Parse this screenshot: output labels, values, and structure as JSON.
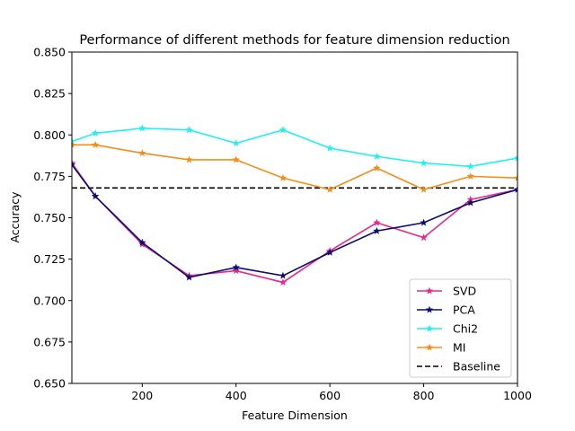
{
  "chart_data": {
    "type": "line",
    "title": "Performance of different methods for feature dimension reduction",
    "xlabel": "Feature Dimension",
    "ylabel": "Accuracy",
    "xlim": [
      50,
      1000
    ],
    "ylim": [
      0.65,
      0.85
    ],
    "xticks": [
      200,
      400,
      600,
      800,
      1000
    ],
    "xtick_labels": [
      "200",
      "400",
      "600",
      "800",
      "1000"
    ],
    "yticks": [
      0.65,
      0.675,
      0.7,
      0.725,
      0.75,
      0.775,
      0.8,
      0.825,
      0.85
    ],
    "ytick_labels": [
      "0.650",
      "0.675",
      "0.700",
      "0.725",
      "0.750",
      "0.775",
      "0.800",
      "0.825",
      "0.850"
    ],
    "grid": false,
    "legend_position": "lower-right",
    "x": [
      50,
      100,
      200,
      300,
      400,
      500,
      600,
      700,
      800,
      900,
      1000
    ],
    "series": [
      {
        "name": "SVD",
        "color": "#e7298a",
        "marker": "star",
        "values": [
          0.783,
          0.763,
          0.734,
          0.715,
          0.718,
          0.711,
          0.73,
          0.747,
          0.738,
          0.761,
          0.767
        ]
      },
      {
        "name": "PCA",
        "color": "#0b0b73",
        "marker": "star",
        "values": [
          0.782,
          0.763,
          0.735,
          0.714,
          0.72,
          0.715,
          0.729,
          0.742,
          0.747,
          0.759,
          0.767
        ]
      },
      {
        "name": "Chi2",
        "color": "#20f0f0",
        "marker": "star",
        "values": [
          0.796,
          0.801,
          0.804,
          0.803,
          0.795,
          0.803,
          0.792,
          0.787,
          0.783,
          0.781,
          0.786
        ]
      },
      {
        "name": "MI",
        "color": "#f28e1c",
        "marker": "star",
        "values": [
          0.794,
          0.794,
          0.789,
          0.785,
          0.785,
          0.774,
          0.767,
          0.78,
          0.767,
          0.775,
          0.774
        ]
      }
    ],
    "baseline": {
      "name": "Baseline",
      "color": "#000000",
      "style": "dashed",
      "value": 0.768
    }
  }
}
